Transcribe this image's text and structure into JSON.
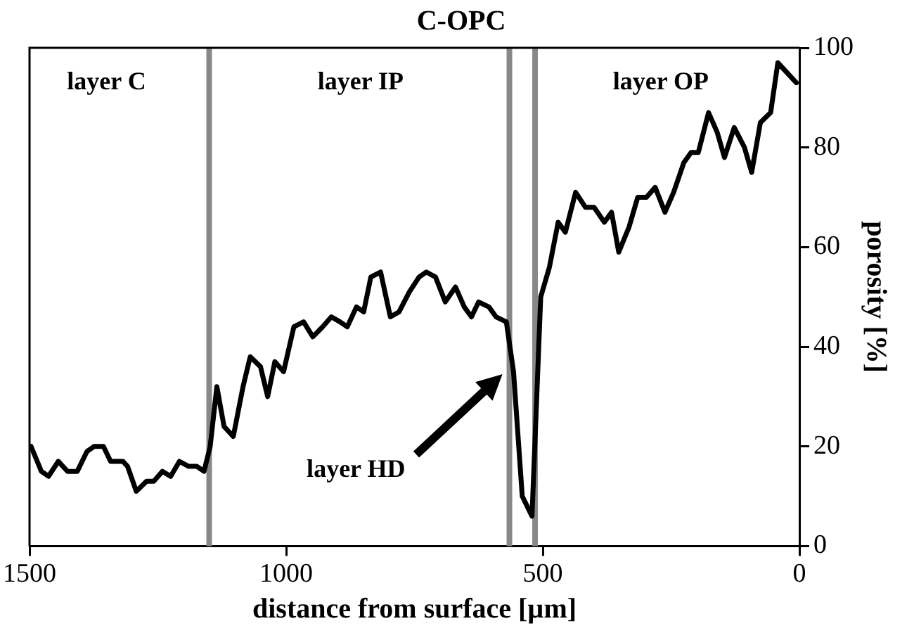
{
  "chart_data": {
    "type": "line",
    "title": "C-OPC",
    "xlabel": "distance from surface [µm]",
    "ylabel": "porosity [%]",
    "xlim": [
      1500,
      0
    ],
    "xticks": [
      1500,
      1000,
      500,
      0
    ],
    "ylim": [
      0,
      100
    ],
    "yticks": [
      0,
      20,
      40,
      60,
      80,
      100
    ],
    "grid": false,
    "legend": false,
    "marker": "none",
    "line_style": "solid",
    "series": [
      {
        "color": "#000000",
        "x": [
          1497,
          1477,
          1463,
          1444,
          1426,
          1407,
          1388,
          1374,
          1356,
          1342,
          1318,
          1309,
          1292,
          1272,
          1258,
          1241,
          1225,
          1208,
          1190,
          1174,
          1160,
          1148,
          1135,
          1121,
          1103,
          1084,
          1070,
          1050,
          1036,
          1022,
          1005,
          985,
          966,
          948,
          929,
          912,
          895,
          881,
          863,
          849,
          835,
          816,
          797,
          780,
          760,
          741,
          727,
          709,
          690,
          670,
          653,
          639,
          625,
          605,
          591,
          571,
          557,
          540,
          521,
          504,
          487,
          470,
          456,
          436,
          417,
          400,
          380,
          366,
          352,
          332,
          315,
          298,
          281,
          262,
          245,
          225,
          211,
          197,
          177,
          160,
          146,
          127,
          107,
          93,
          76,
          56,
          42,
          6
        ],
        "values": [
          20,
          15,
          14,
          17,
          15,
          15,
          19,
          20,
          20,
          17,
          17,
          16,
          11,
          13,
          13,
          15,
          14,
          17,
          16,
          16,
          15,
          20,
          32,
          24,
          22,
          32,
          38,
          36,
          30,
          37,
          35,
          44,
          45,
          42,
          44,
          46,
          45,
          44,
          48,
          47,
          54,
          55,
          46,
          47,
          51,
          54,
          55,
          54,
          49,
          52,
          48,
          46,
          49,
          48,
          46,
          45,
          35,
          10,
          6,
          50,
          56,
          65,
          63,
          71,
          68,
          68,
          65,
          67,
          59,
          64,
          70,
          70,
          72,
          67,
          71,
          77,
          79,
          79,
          87,
          83,
          78,
          84,
          80,
          75,
          85,
          87,
          97,
          93
        ]
      }
    ],
    "ref_lines": [
      {
        "axis": "x",
        "value": 1150,
        "color": "#888888"
      },
      {
        "axis": "x",
        "value": 565,
        "color": "#888888"
      },
      {
        "axis": "x",
        "value": 515,
        "color": "#888888"
      }
    ],
    "annotations": [
      "layer C",
      "layer IP",
      "layer OP",
      "layer HD"
    ]
  }
}
